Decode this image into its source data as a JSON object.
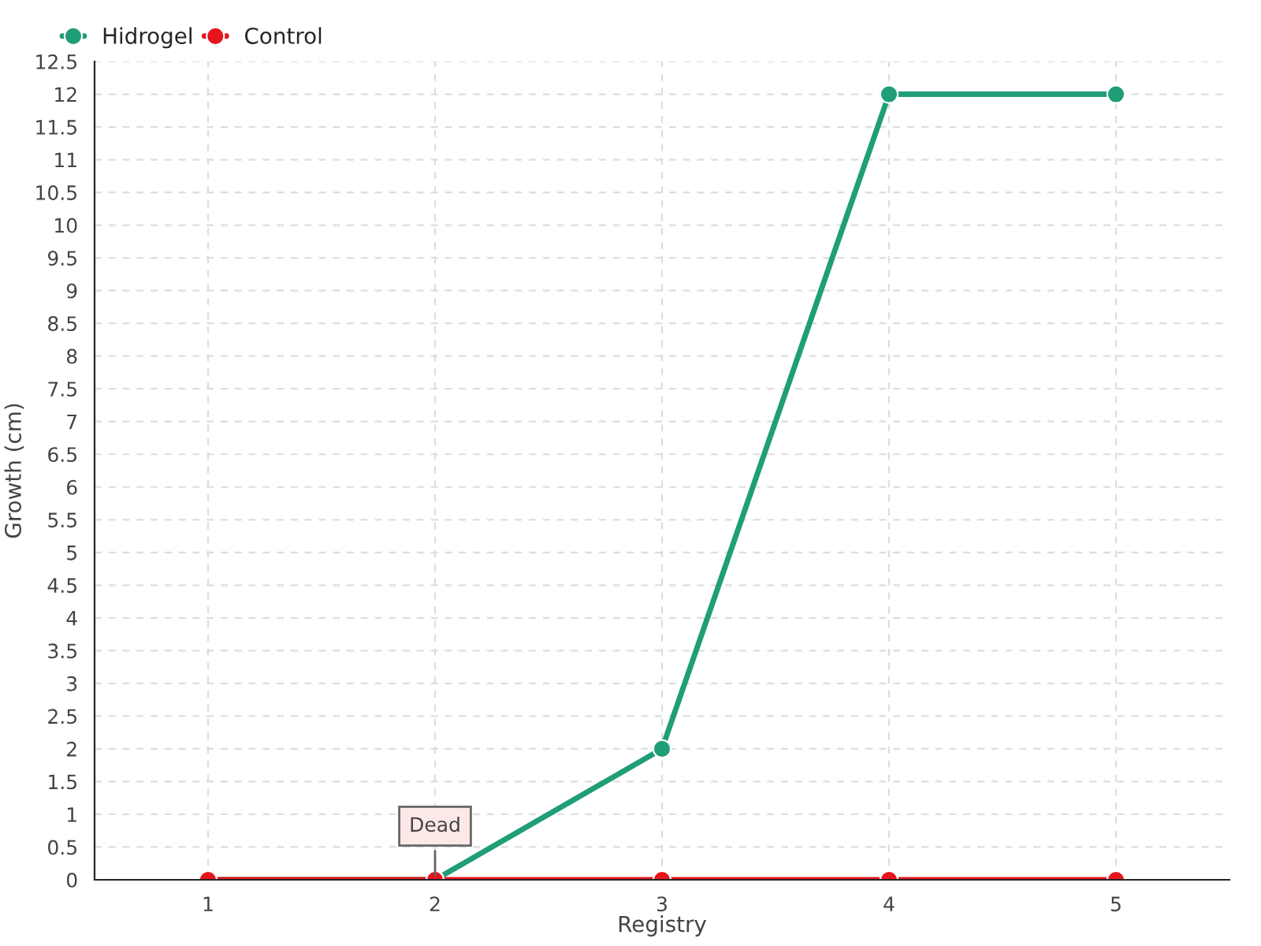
{
  "chart_data": {
    "type": "line",
    "xlabel": "Registry",
    "ylabel": "Growth (cm)",
    "x": [
      1,
      2,
      3,
      4,
      5
    ],
    "series": [
      {
        "name": "Hidrogel",
        "color": "#1f9e78",
        "values": [
          0,
          0,
          2,
          12,
          12
        ]
      },
      {
        "name": "Control",
        "color": "#e8141c",
        "values": [
          0,
          0,
          0,
          0,
          0
        ]
      }
    ],
    "xlim": [
      0.5,
      5.5
    ],
    "xticks": [
      1,
      2,
      3,
      4,
      5
    ],
    "ylim": [
      0,
      12.5
    ],
    "yticks": [
      0,
      0.5,
      1,
      1.5,
      2,
      2.5,
      3,
      3.5,
      4,
      4.5,
      5,
      5.5,
      6,
      6.5,
      7,
      7.5,
      8,
      8.5,
      9,
      9.5,
      10,
      10.5,
      11,
      11.5,
      12,
      12.5
    ],
    "annotations": [
      {
        "text": "Dead",
        "x": 2,
        "y": 0
      }
    ],
    "grid": true,
    "legend": "top left",
    "marker": "circle",
    "line_style": "solid"
  }
}
